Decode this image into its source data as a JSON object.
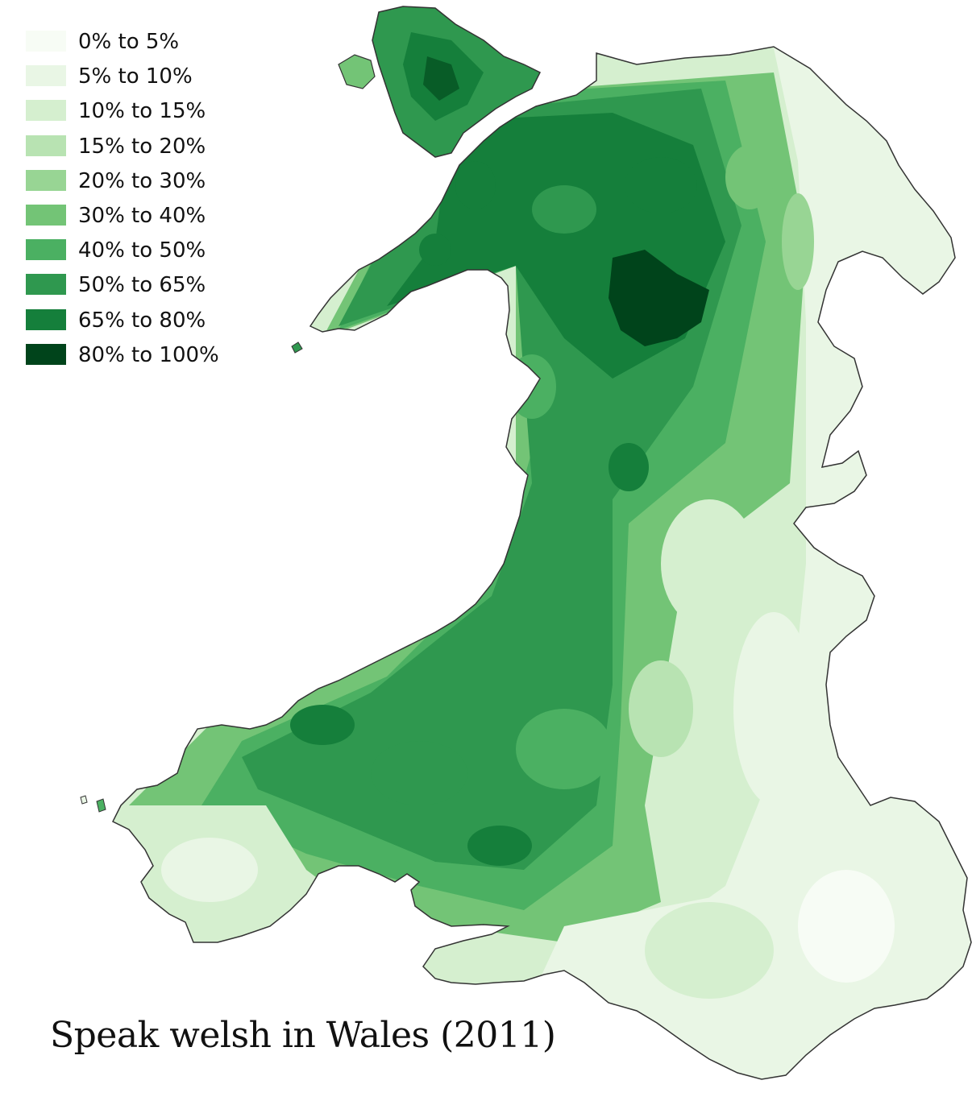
{
  "title": "Speak welsh in Wales (2011)",
  "legend": [
    {
      "label": "0% to 5%",
      "color": "#f7fcf5"
    },
    {
      "label": "5% to 10%",
      "color": "#e9f6e5"
    },
    {
      "label": "10% to 15%",
      "color": "#d5efcf"
    },
    {
      "label": "15% to 20%",
      "color": "#b8e3b2"
    },
    {
      "label": "20% to 30%",
      "color": "#98d594"
    },
    {
      "label": "30% to 40%",
      "color": "#73c476"
    },
    {
      "label": "40% to 50%",
      "color": "#4bb062"
    },
    {
      "label": "50% to 65%",
      "color": "#2f984f"
    },
    {
      "label": "65% to 80%",
      "color": "#157f3b"
    },
    {
      "label": "80% to 100%",
      "color": "#00441b"
    }
  ],
  "map": {
    "outline_color": "#333333",
    "sea_color": "#ffffff"
  }
}
